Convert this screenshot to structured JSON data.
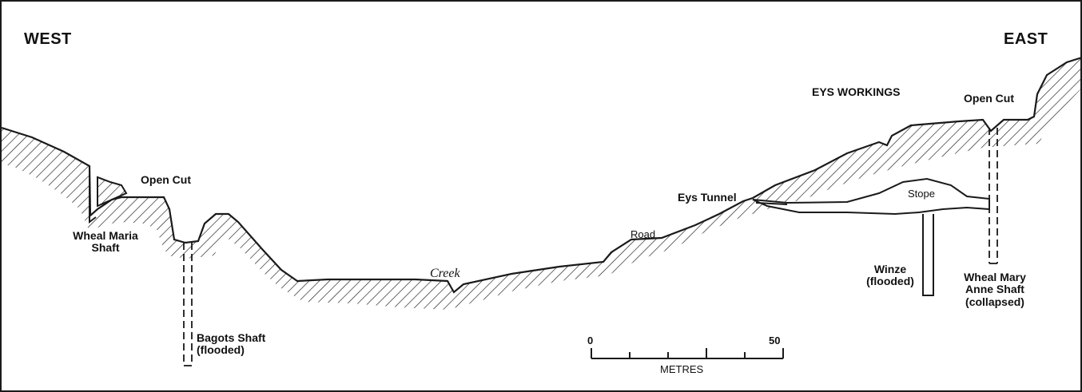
{
  "headings": {
    "west": "WEST",
    "east": "EAST"
  },
  "labels": {
    "eys_workings": "EYS WORKINGS",
    "open_cut_east": "Open Cut",
    "open_cut_west": "Open Cut",
    "eys_tunnel": "Eys Tunnel",
    "stope": "Stope",
    "road": "Road",
    "creek": "Creek",
    "wheal_maria": [
      "Wheal Maria",
      "Shaft"
    ],
    "bagots": [
      "Bagots Shaft",
      "(flooded)"
    ],
    "winze": [
      "Winze",
      "(flooded)"
    ],
    "wheal_mary_anne": [
      "Wheal Mary",
      "Anne Shaft",
      "(collapsed)"
    ]
  },
  "scale_bar": {
    "min_label": "0",
    "max_label": "50",
    "unit": "METRES"
  },
  "colors": {
    "ink": "#1a1a1a",
    "background": "#ffffff"
  }
}
